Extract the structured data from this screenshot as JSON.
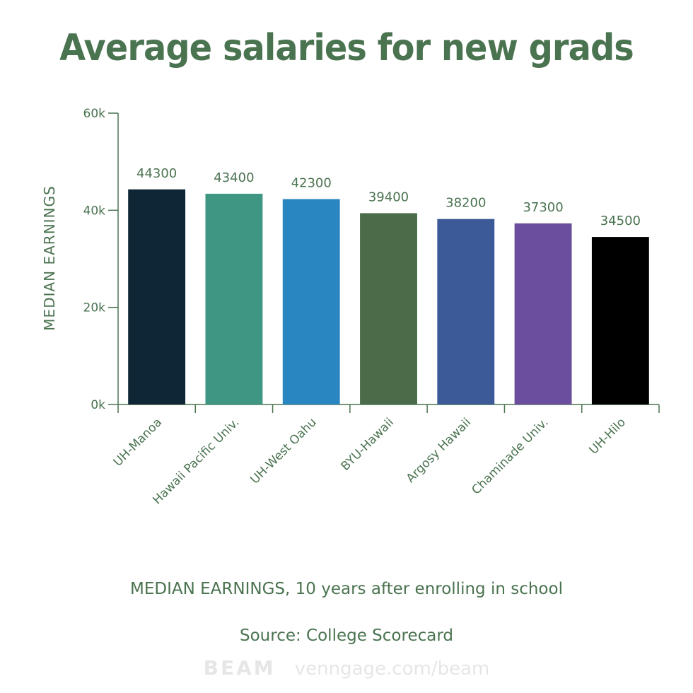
{
  "title": "Average salaries for new grads",
  "subtitle": "MEDIAN EARNINGS, 10 years after enrolling in school",
  "source": "Source: College Scorecard",
  "watermark": {
    "brand": "BEAM",
    "url": "venngage.com/beam"
  },
  "colors": {
    "text": "#4a7350",
    "axis": "#4a7350",
    "bars": [
      "#0f2636",
      "#3f9783",
      "#2a86c1",
      "#4a6c49",
      "#3d5a98",
      "#6b4f9e",
      "#000000"
    ]
  },
  "chart_data": {
    "type": "bar",
    "categories": [
      "UH-Manoa",
      "Hawaii Pacific Univ.",
      "UH-West Oahu",
      "BYU-Hawaii",
      "Argosy Hawaii",
      "Chaminade Univ.",
      "UH-Hilo"
    ],
    "values": [
      44300,
      43400,
      42300,
      39400,
      38200,
      37300,
      34500
    ],
    "ylabel": "MEDIAN EARNINGS",
    "ylim": [
      0,
      60000
    ],
    "yticks": [
      0,
      20000,
      40000,
      60000
    ],
    "ytick_labels": [
      "0k",
      "20k",
      "40k",
      "60k"
    ],
    "grid": false,
    "legend": "none"
  }
}
